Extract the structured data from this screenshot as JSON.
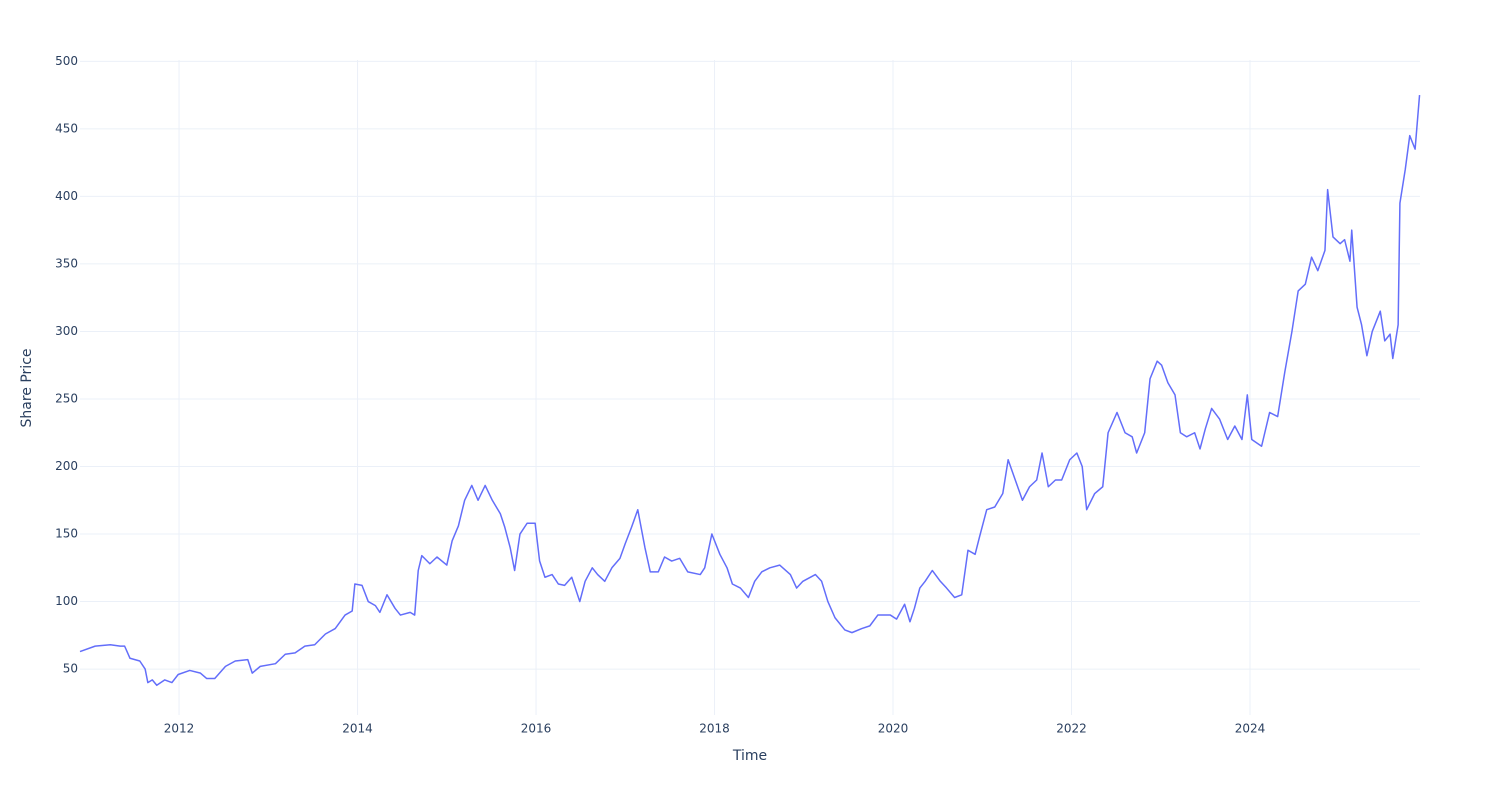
{
  "chart_data": {
    "type": "line",
    "x_label": "Time",
    "y_label": "Share Price",
    "x": [
      2010.89,
      2011.06,
      2011.23,
      2011.34,
      2011.39,
      2011.45,
      2011.56,
      2011.62,
      2011.65,
      2011.7,
      2011.75,
      2011.84,
      2011.92,
      2011.99,
      2012.12,
      2012.24,
      2012.31,
      2012.4,
      2012.52,
      2012.63,
      2012.77,
      2012.82,
      2012.91,
      2013.08,
      2013.19,
      2013.3,
      2013.41,
      2013.52,
      2013.64,
      2013.75,
      2013.86,
      2013.94,
      2013.97,
      2014.05,
      2014.12,
      2014.2,
      2014.25,
      2014.33,
      2014.42,
      2014.48,
      2014.59,
      2014.64,
      2014.68,
      2014.72,
      2014.81,
      2014.89,
      2015.0,
      2015.06,
      2015.13,
      2015.2,
      2015.28,
      2015.35,
      2015.43,
      2015.51,
      2015.6,
      2015.65,
      2015.71,
      2015.76,
      2015.82,
      2015.9,
      2015.99,
      2016.04,
      2016.1,
      2016.18,
      2016.25,
      2016.32,
      2016.4,
      2016.49,
      2016.55,
      2016.63,
      2016.69,
      2016.77,
      2016.85,
      2016.94,
      2017.0,
      2017.07,
      2017.14,
      2017.22,
      2017.28,
      2017.37,
      2017.44,
      2017.52,
      2017.61,
      2017.7,
      2017.84,
      2017.89,
      2017.97,
      2018.06,
      2018.14,
      2018.2,
      2018.29,
      2018.38,
      2018.45,
      2018.53,
      2018.62,
      2018.73,
      2018.85,
      2018.92,
      2018.99,
      2019.13,
      2019.2,
      2019.27,
      2019.35,
      2019.46,
      2019.54,
      2019.65,
      2019.74,
      2019.83,
      2019.97,
      2020.04,
      2020.13,
      2020.19,
      2020.24,
      2020.3,
      2020.36,
      2020.44,
      2020.53,
      2020.6,
      2020.69,
      2020.77,
      2020.84,
      2020.92,
      2020.97,
      2021.05,
      2021.14,
      2021.23,
      2021.29,
      2021.37,
      2021.45,
      2021.53,
      2021.61,
      2021.67,
      2021.74,
      2021.82,
      2021.89,
      2021.98,
      2022.06,
      2022.12,
      2022.17,
      2022.26,
      2022.35,
      2022.41,
      2022.51,
      2022.6,
      2022.68,
      2022.73,
      2022.82,
      2022.88,
      2022.96,
      2023.01,
      2023.08,
      2023.16,
      2023.22,
      2023.29,
      2023.38,
      2023.44,
      2023.5,
      2023.57,
      2023.66,
      2023.75,
      2023.83,
      2023.91,
      2023.97,
      2024.02,
      2024.13,
      2024.22,
      2024.31,
      2024.39,
      2024.47,
      2024.54,
      2024.62,
      2024.69,
      2024.76,
      2024.84,
      2024.87,
      2024.93,
      2025.01,
      2025.06,
      2025.12,
      2025.14,
      2025.2,
      2025.25,
      2025.31,
      2025.37,
      2025.46,
      2025.51,
      2025.57,
      2025.6,
      2025.66,
      2025.68,
      2025.74,
      2025.79,
      2025.85,
      2025.9
    ],
    "series": [
      {
        "color": "#636efa",
        "values": [
          63,
          67,
          68,
          67,
          67,
          58,
          56,
          50,
          40,
          42,
          38,
          42,
          40,
          46,
          49,
          47,
          43,
          43,
          52,
          56,
          57,
          47,
          52,
          54,
          61,
          62,
          67,
          68,
          76,
          80,
          90,
          93,
          113,
          112,
          100,
          97,
          92,
          105,
          95,
          90,
          92,
          90,
          123,
          134,
          128,
          133,
          127,
          145,
          156,
          175,
          186,
          175,
          186,
          175,
          165,
          155,
          140,
          123,
          150,
          158,
          158,
          130,
          118,
          120,
          113,
          112,
          118,
          100,
          115,
          125,
          120,
          115,
          125,
          132,
          143,
          155,
          168,
          140,
          122,
          122,
          133,
          130,
          132,
          122,
          120,
          125,
          150,
          135,
          125,
          113,
          110,
          103,
          115,
          122,
          125,
          127,
          120,
          110,
          115,
          120,
          115,
          100,
          88,
          79,
          77,
          80,
          82,
          90,
          90,
          87,
          98,
          85,
          95,
          110,
          115,
          123,
          115,
          110,
          103,
          105,
          138,
          135,
          148,
          168,
          170,
          180,
          205,
          190,
          175,
          185,
          190,
          210,
          185,
          190,
          190,
          205,
          210,
          200,
          168,
          180,
          185,
          225,
          240,
          225,
          222,
          210,
          225,
          265,
          278,
          275,
          262,
          253,
          225,
          222,
          225,
          213,
          228,
          243,
          235,
          220,
          230,
          220,
          253,
          220,
          215,
          240,
          237,
          270,
          300,
          330,
          335,
          355,
          345,
          360,
          405,
          370,
          365,
          368,
          352,
          375,
          318,
          305,
          282,
          300,
          315,
          293,
          298,
          280,
          305,
          395,
          420,
          445,
          435,
          475
        ]
      }
    ],
    "xlim": [
      2010.89,
      2025.905
    ],
    "xticks": [
      2012,
      2014,
      2016,
      2018,
      2020,
      2022,
      2024
    ],
    "ylim": [
      16,
      501
    ],
    "yticks": [
      50,
      100,
      150,
      200,
      250,
      300,
      350,
      400,
      450,
      500
    ],
    "grid": true
  }
}
